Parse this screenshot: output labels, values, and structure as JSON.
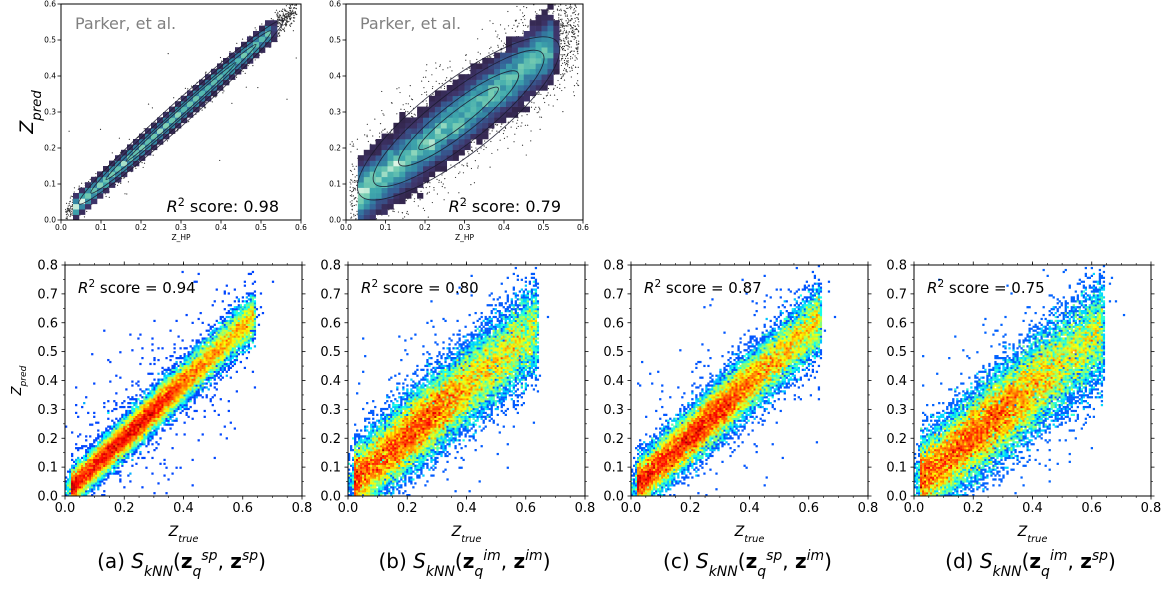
{
  "figure": {
    "captions": [
      "(a) $S_{kNN}(\\mathbf{z}_q^{sp}, \\mathbf{z}^{sp})$",
      "(b) $S_{kNN}(\\mathbf{z}_q^{im}, \\mathbf{z}^{im})$",
      "(c) $S_{kNN}(\\mathbf{z}_q^{sp}, \\mathbf{z}^{im})$",
      "(d) $S_{kNN}(\\mathbf{z}_q^{im}, \\mathbf{z}^{sp})$"
    ],
    "colors": {
      "axis": "#000000",
      "watermark": "#808080",
      "contour": "#1a1a2e"
    }
  },
  "chart_data": [
    {
      "type": "scatter",
      "subtype": "density-scatter-with-contours",
      "panel": "top-left",
      "annotation": "Parker, et al.",
      "score_text": "$R^2$ score: 0.98",
      "r2": 0.98,
      "xlabel": "Z_HP",
      "ylabel": "$Z_{pred}$",
      "xlim": [
        0,
        0.6
      ],
      "ylim": [
        0,
        0.6
      ],
      "xticks": [
        0.0,
        0.1,
        0.2,
        0.3,
        0.4,
        0.5,
        0.6
      ],
      "yticks": [
        0.0,
        0.1,
        0.2,
        0.3,
        0.4,
        0.5,
        0.6
      ],
      "tick_labels": [
        "0.0",
        "0.1",
        "0.2",
        "0.3",
        "0.4",
        "0.5",
        "0.6"
      ],
      "grid": false,
      "colormap": "mako",
      "trend": {
        "slope": 1.0,
        "intercept": 0.0
      },
      "spread": 0.014,
      "x_range_of_points": [
        0.0,
        0.6
      ]
    },
    {
      "type": "scatter",
      "subtype": "density-scatter-with-contours",
      "panel": "top-middle",
      "annotation": "Parker, et al.",
      "score_text": "$R^2$ score: 0.79",
      "r2": 0.79,
      "xlabel": "Z_HP",
      "ylabel": "",
      "xlim": [
        0,
        0.6
      ],
      "ylim": [
        0,
        0.6
      ],
      "xticks": [
        0.0,
        0.1,
        0.2,
        0.3,
        0.4,
        0.5,
        0.6
      ],
      "yticks": [
        0.0,
        0.1,
        0.2,
        0.3,
        0.4,
        0.5,
        0.6
      ],
      "tick_labels": [
        "0.0",
        "0.1",
        "0.2",
        "0.3",
        "0.4",
        "0.5",
        "0.6"
      ],
      "grid": false,
      "colormap": "mako",
      "trend": {
        "slope": 0.85,
        "intercept": 0.04
      },
      "spread": 0.045,
      "x_range_of_points": [
        0.0,
        0.6
      ]
    },
    {
      "type": "heatmap",
      "subtype": "2d-histogram",
      "panel": "a",
      "score_text": "$R^2$ score = 0.94",
      "r2": 0.94,
      "xlabel": "$Z_{true}$",
      "ylabel": "$Z_{pred}$",
      "xlim": [
        0,
        0.8
      ],
      "ylim": [
        0,
        0.8
      ],
      "xticks": [
        0.0,
        0.2,
        0.4,
        0.6,
        0.8
      ],
      "xtick_labels": [
        "0.0",
        "0.2",
        "0.4",
        "0.6",
        "0.8"
      ],
      "yticks": [
        0.0,
        0.1,
        0.2,
        0.3,
        0.4,
        0.5,
        0.6,
        0.7,
        0.8
      ],
      "ytick_labels": [
        "0.0",
        "0.1",
        "0.2",
        "0.3",
        "0.4",
        "0.5",
        "0.6",
        "0.7",
        "0.8"
      ],
      "grid": false,
      "colormap": "jet",
      "trend": {
        "slope": 0.96,
        "intercept": 0.01
      },
      "spread": 0.028
    },
    {
      "type": "heatmap",
      "subtype": "2d-histogram",
      "panel": "b",
      "score_text": "$R^2$ score = 0.80",
      "r2": 0.8,
      "xlabel": "$Z_{true}$",
      "ylabel": "",
      "xlim": [
        0,
        0.8
      ],
      "ylim": [
        0,
        0.8
      ],
      "xticks": [
        0.0,
        0.2,
        0.4,
        0.6,
        0.8
      ],
      "xtick_labels": [
        "0.0",
        "0.2",
        "0.4",
        "0.6",
        "0.8"
      ],
      "yticks": [
        0.0,
        0.1,
        0.2,
        0.3,
        0.4,
        0.5,
        0.6,
        0.7,
        0.8
      ],
      "ytick_labels": [
        "0.0",
        "0.1",
        "0.2",
        "0.3",
        "0.4",
        "0.5",
        "0.6",
        "0.7",
        "0.8"
      ],
      "grid": false,
      "colormap": "jet",
      "trend": {
        "slope": 0.86,
        "intercept": 0.035
      },
      "spread": 0.055
    },
    {
      "type": "heatmap",
      "subtype": "2d-histogram",
      "panel": "c",
      "score_text": "$R^2$ score = 0.87",
      "r2": 0.87,
      "xlabel": "$Z_{true}$",
      "ylabel": "",
      "xlim": [
        0,
        0.8
      ],
      "ylim": [
        0,
        0.8
      ],
      "xticks": [
        0.0,
        0.2,
        0.4,
        0.6,
        0.8
      ],
      "xtick_labels": [
        "0.0",
        "0.2",
        "0.4",
        "0.6",
        "0.8"
      ],
      "yticks": [
        0.0,
        0.1,
        0.2,
        0.3,
        0.4,
        0.5,
        0.6,
        0.7,
        0.8
      ],
      "ytick_labels": [
        "0.0",
        "0.1",
        "0.2",
        "0.3",
        "0.4",
        "0.5",
        "0.6",
        "0.7",
        "0.8"
      ],
      "grid": false,
      "colormap": "jet",
      "trend": {
        "slope": 0.93,
        "intercept": 0.02
      },
      "spread": 0.04
    },
    {
      "type": "heatmap",
      "subtype": "2d-histogram",
      "panel": "d",
      "score_text": "$R^2$ score = 0.75",
      "r2": 0.75,
      "xlabel": "$Z_{true}$",
      "ylabel": "",
      "xlim": [
        0,
        0.8
      ],
      "ylim": [
        0,
        0.8
      ],
      "xticks": [
        0.0,
        0.2,
        0.4,
        0.6,
        0.8
      ],
      "xtick_labels": [
        "0.0",
        "0.2",
        "0.4",
        "0.6",
        "0.8"
      ],
      "yticks": [
        0.0,
        0.1,
        0.2,
        0.3,
        0.4,
        0.5,
        0.6,
        0.7,
        0.8
      ],
      "ytick_labels": [
        "0.0",
        "0.1",
        "0.2",
        "0.3",
        "0.4",
        "0.5",
        "0.6",
        "0.7",
        "0.8"
      ],
      "grid": false,
      "colormap": "jet",
      "trend": {
        "slope": 0.84,
        "intercept": 0.04
      },
      "spread": 0.062
    }
  ]
}
